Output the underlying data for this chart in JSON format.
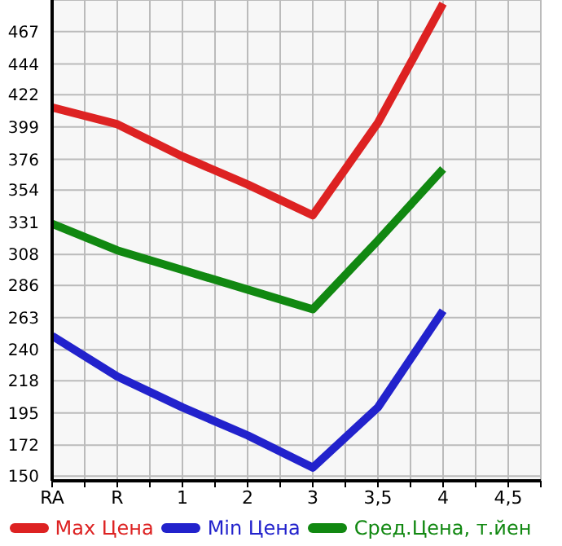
{
  "chart_data": {
    "type": "line",
    "categories": [
      "RA",
      "R",
      "1",
      "2",
      "3",
      "3,5",
      "4",
      "4,5"
    ],
    "series": [
      {
        "name": "Max Цена",
        "color": "#dd2222",
        "values": [
          413,
          401,
          378,
          358,
          336,
          402,
          487,
          null
        ]
      },
      {
        "name": "Min Цена",
        "color": "#2222cc",
        "values": [
          250,
          221,
          199,
          179,
          156,
          199,
          268,
          null
        ]
      },
      {
        "name": "Сред.Цена, т.йен",
        "color": "#118811",
        "values": [
          330,
          311,
          297,
          283,
          269,
          318,
          369,
          null
        ]
      }
    ],
    "ylim": [
      146.6,
      489.6
    ],
    "yticks": [
      150,
      172,
      195,
      218,
      240,
      263,
      286,
      308,
      331,
      354,
      376,
      399,
      422,
      444,
      467
    ],
    "grid": true,
    "legend": "bottom",
    "marker": "none",
    "line_style": "solid"
  }
}
